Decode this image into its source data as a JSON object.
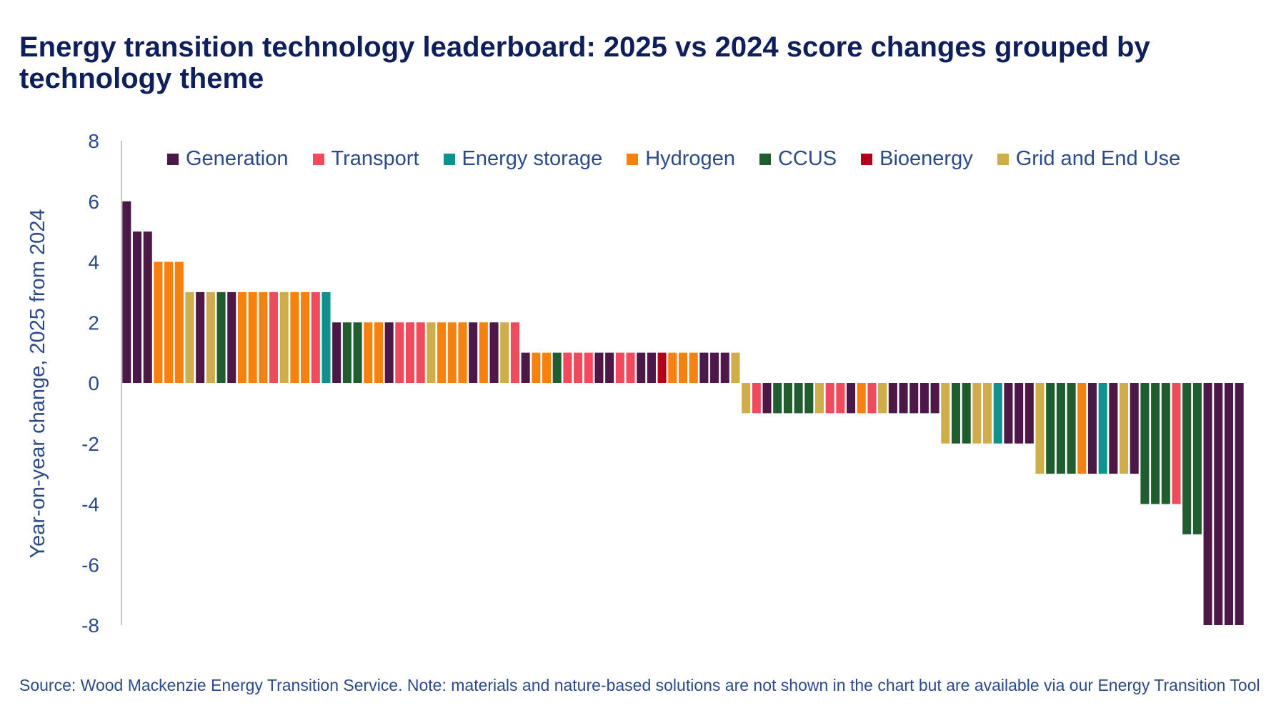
{
  "title": "Energy transition technology leaderboard: 2025 vs 2024 score changes grouped by technology theme",
  "source": "Source: Wood Mackenzie Energy Transition Service. Note: materials and nature-based solutions are not shown in the chart but are available via our Energy Transition Tool",
  "chart_data": {
    "type": "bar",
    "title": "Energy transition technology leaderboard: 2025 vs 2024 score changes grouped by technology theme",
    "ylabel": "Year-on-year change, 2025 from 2024",
    "xlabel": "",
    "ylim": [
      -8,
      8
    ],
    "yticks": [
      8,
      6,
      4,
      2,
      0,
      -2,
      -4,
      -6,
      -8
    ],
    "legend_position": "top",
    "grid": false,
    "themes": [
      {
        "key": "G",
        "name": "Generation",
        "color": "#4b1848"
      },
      {
        "key": "T",
        "name": "Transport",
        "color": "#f04a5c"
      },
      {
        "key": "E",
        "name": "Energy storage",
        "color": "#12908e"
      },
      {
        "key": "H",
        "name": "Hydrogen",
        "color": "#f6820d"
      },
      {
        "key": "C",
        "name": "CCUS",
        "color": "#1f5c2e"
      },
      {
        "key": "B",
        "name": "Bioenergy",
        "color": "#b3001b"
      },
      {
        "key": "U",
        "name": "Grid and End Use",
        "color": "#cfad4a"
      }
    ],
    "bars": [
      {
        "theme": "G",
        "value": 6
      },
      {
        "theme": "G",
        "value": 5
      },
      {
        "theme": "G",
        "value": 5
      },
      {
        "theme": "H",
        "value": 4
      },
      {
        "theme": "H",
        "value": 4
      },
      {
        "theme": "H",
        "value": 4
      },
      {
        "theme": "U",
        "value": 3
      },
      {
        "theme": "G",
        "value": 3
      },
      {
        "theme": "U",
        "value": 3
      },
      {
        "theme": "C",
        "value": 3
      },
      {
        "theme": "G",
        "value": 3
      },
      {
        "theme": "H",
        "value": 3
      },
      {
        "theme": "H",
        "value": 3
      },
      {
        "theme": "H",
        "value": 3
      },
      {
        "theme": "T",
        "value": 3
      },
      {
        "theme": "U",
        "value": 3
      },
      {
        "theme": "H",
        "value": 3
      },
      {
        "theme": "H",
        "value": 3
      },
      {
        "theme": "T",
        "value": 3
      },
      {
        "theme": "E",
        "value": 3
      },
      {
        "theme": "G",
        "value": 2
      },
      {
        "theme": "C",
        "value": 2
      },
      {
        "theme": "C",
        "value": 2
      },
      {
        "theme": "H",
        "value": 2
      },
      {
        "theme": "H",
        "value": 2
      },
      {
        "theme": "G",
        "value": 2
      },
      {
        "theme": "T",
        "value": 2
      },
      {
        "theme": "T",
        "value": 2
      },
      {
        "theme": "T",
        "value": 2
      },
      {
        "theme": "U",
        "value": 2
      },
      {
        "theme": "H",
        "value": 2
      },
      {
        "theme": "H",
        "value": 2
      },
      {
        "theme": "H",
        "value": 2
      },
      {
        "theme": "G",
        "value": 2
      },
      {
        "theme": "H",
        "value": 2
      },
      {
        "theme": "G",
        "value": 2
      },
      {
        "theme": "U",
        "value": 2
      },
      {
        "theme": "T",
        "value": 2
      },
      {
        "theme": "G",
        "value": 1
      },
      {
        "theme": "H",
        "value": 1
      },
      {
        "theme": "H",
        "value": 1
      },
      {
        "theme": "C",
        "value": 1
      },
      {
        "theme": "T",
        "value": 1
      },
      {
        "theme": "T",
        "value": 1
      },
      {
        "theme": "T",
        "value": 1
      },
      {
        "theme": "G",
        "value": 1
      },
      {
        "theme": "G",
        "value": 1
      },
      {
        "theme": "T",
        "value": 1
      },
      {
        "theme": "T",
        "value": 1
      },
      {
        "theme": "G",
        "value": 1
      },
      {
        "theme": "G",
        "value": 1
      },
      {
        "theme": "B",
        "value": 1
      },
      {
        "theme": "H",
        "value": 1
      },
      {
        "theme": "H",
        "value": 1
      },
      {
        "theme": "H",
        "value": 1
      },
      {
        "theme": "G",
        "value": 1
      },
      {
        "theme": "G",
        "value": 1
      },
      {
        "theme": "G",
        "value": 1
      },
      {
        "theme": "U",
        "value": 1
      },
      {
        "theme": "U",
        "value": -1
      },
      {
        "theme": "T",
        "value": -1
      },
      {
        "theme": "G",
        "value": -1
      },
      {
        "theme": "C",
        "value": -1
      },
      {
        "theme": "C",
        "value": -1
      },
      {
        "theme": "C",
        "value": -1
      },
      {
        "theme": "C",
        "value": -1
      },
      {
        "theme": "U",
        "value": -1
      },
      {
        "theme": "T",
        "value": -1
      },
      {
        "theme": "T",
        "value": -1
      },
      {
        "theme": "G",
        "value": -1
      },
      {
        "theme": "H",
        "value": -1
      },
      {
        "theme": "T",
        "value": -1
      },
      {
        "theme": "U",
        "value": -1
      },
      {
        "theme": "G",
        "value": -1
      },
      {
        "theme": "G",
        "value": -1
      },
      {
        "theme": "G",
        "value": -1
      },
      {
        "theme": "G",
        "value": -1
      },
      {
        "theme": "G",
        "value": -1
      },
      {
        "theme": "U",
        "value": -2
      },
      {
        "theme": "C",
        "value": -2
      },
      {
        "theme": "C",
        "value": -2
      },
      {
        "theme": "U",
        "value": -2
      },
      {
        "theme": "U",
        "value": -2
      },
      {
        "theme": "E",
        "value": -2
      },
      {
        "theme": "G",
        "value": -2
      },
      {
        "theme": "G",
        "value": -2
      },
      {
        "theme": "G",
        "value": -2
      },
      {
        "theme": "U",
        "value": -3
      },
      {
        "theme": "C",
        "value": -3
      },
      {
        "theme": "C",
        "value": -3
      },
      {
        "theme": "C",
        "value": -3
      },
      {
        "theme": "H",
        "value": -3
      },
      {
        "theme": "G",
        "value": -3
      },
      {
        "theme": "E",
        "value": -3
      },
      {
        "theme": "G",
        "value": -3
      },
      {
        "theme": "U",
        "value": -3
      },
      {
        "theme": "G",
        "value": -3
      },
      {
        "theme": "C",
        "value": -4
      },
      {
        "theme": "C",
        "value": -4
      },
      {
        "theme": "C",
        "value": -4
      },
      {
        "theme": "T",
        "value": -4
      },
      {
        "theme": "C",
        "value": -5
      },
      {
        "theme": "C",
        "value": -5
      },
      {
        "theme": "G",
        "value": -8
      },
      {
        "theme": "G",
        "value": -8
      },
      {
        "theme": "G",
        "value": -8
      },
      {
        "theme": "G",
        "value": -8
      }
    ]
  }
}
